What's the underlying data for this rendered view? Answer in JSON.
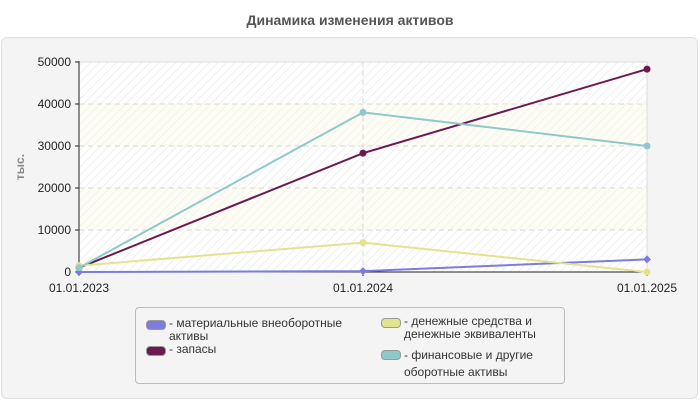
{
  "chart_data": {
    "type": "line",
    "title": "Динамика изменения активов",
    "xlabel": "",
    "ylabel": "тыс.",
    "x": [
      "01.01.2023",
      "01.01.2024",
      "01.01.2025"
    ],
    "ylim": [
      0,
      50000
    ],
    "yticks": [
      0,
      10000,
      20000,
      30000,
      40000,
      50000
    ],
    "grid": true,
    "legend_position": "bottom",
    "series": [
      {
        "name": "материальные внеоборотные активы",
        "color": "#7B7BE0",
        "values": [
          0,
          200,
          3000
        ]
      },
      {
        "name": "запасы",
        "color": "#6B1A4F",
        "values": [
          1000,
          28300,
          48300
        ]
      },
      {
        "name": "денежные средства и денежные эквиваленты",
        "color": "#E3E38E",
        "values": [
          1500,
          7000,
          0
        ]
      },
      {
        "name": "финансовые и другие оборотные активы",
        "color": "#8EC9C9",
        "values": [
          1000,
          38000,
          30000
        ]
      }
    ]
  },
  "header": {
    "title": "Динамика изменения активов"
  },
  "axis": {
    "y_label": "тыс.",
    "y_ticks": [
      "0",
      "10000",
      "20000",
      "30000",
      "40000",
      "50000"
    ],
    "x_ticks": [
      "01.01.2023",
      "01.01.2024",
      "01.01.2025"
    ]
  },
  "legend": {
    "items": [
      {
        "label": "- материальные внеоборотные\nактивы",
        "color": "#7B7BE0"
      },
      {
        "label": "- запасы",
        "color": "#6B1A4F"
      },
      {
        "label": "- денежные средства и\nденежные эквиваленты",
        "color": "#E3E38E"
      },
      {
        "label": "- финансовые и другие\nоборотные активы",
        "color": "#8EC9C9"
      }
    ]
  }
}
